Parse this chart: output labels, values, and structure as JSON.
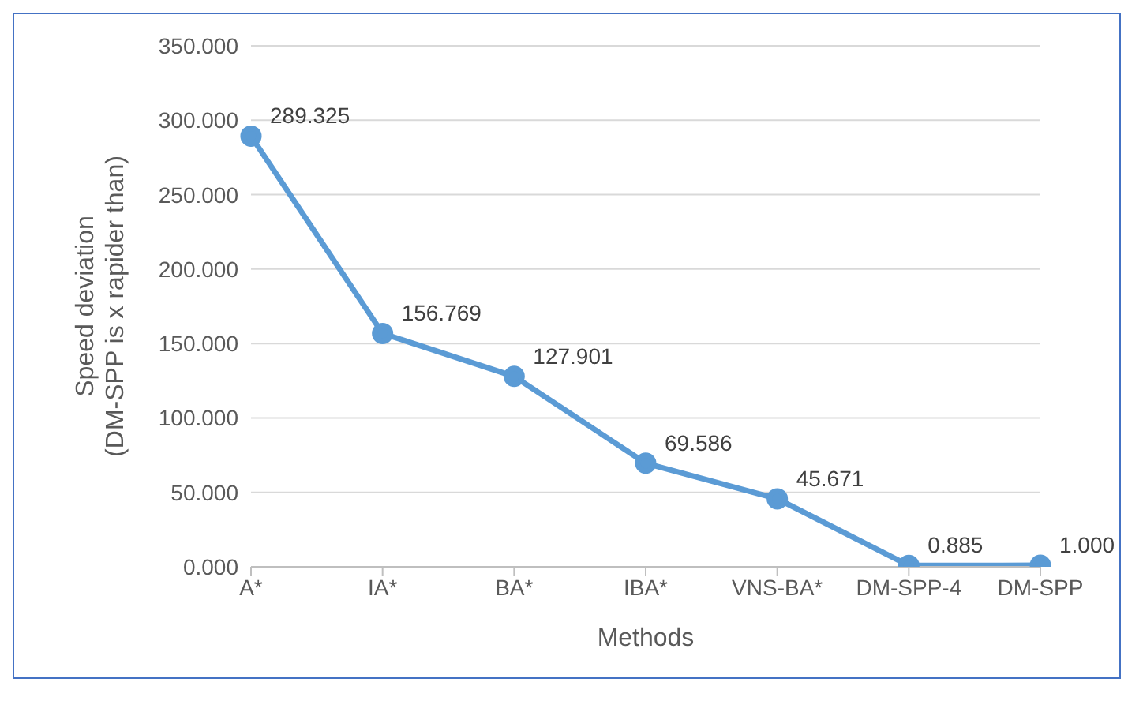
{
  "chart_data": {
    "type": "line",
    "xlabel": "Methods",
    "ylabel": "Speed deviation\n(DM-SPP is x rapider than)",
    "categories": [
      "A*",
      "IA*",
      "BA*",
      "IBA*",
      "VNS-BA*",
      "DM-SPP-4",
      "DM-SPP"
    ],
    "series": [
      {
        "color": "#5b9bd5",
        "values": [
          289.325,
          156.769,
          127.901,
          69.586,
          45.671,
          0.885,
          1.0
        ],
        "value_labels": [
          "289.325",
          "156.769",
          "127.901",
          "69.586",
          "45.671",
          "0.885",
          "1.000"
        ]
      }
    ],
    "ylim": [
      0,
      350
    ],
    "yticks": [
      {
        "value": 0,
        "label": "0.000"
      },
      {
        "value": 50,
        "label": "50.000"
      },
      {
        "value": 100,
        "label": "100.000"
      },
      {
        "value": 150,
        "label": "150.000"
      },
      {
        "value": 200,
        "label": "200.000"
      },
      {
        "value": 250,
        "label": "250.000"
      },
      {
        "value": 300,
        "label": "300.000"
      },
      {
        "value": 350,
        "label": "350.000"
      }
    ],
    "grid": "y",
    "marker": "circle",
    "line_style": "solid"
  }
}
